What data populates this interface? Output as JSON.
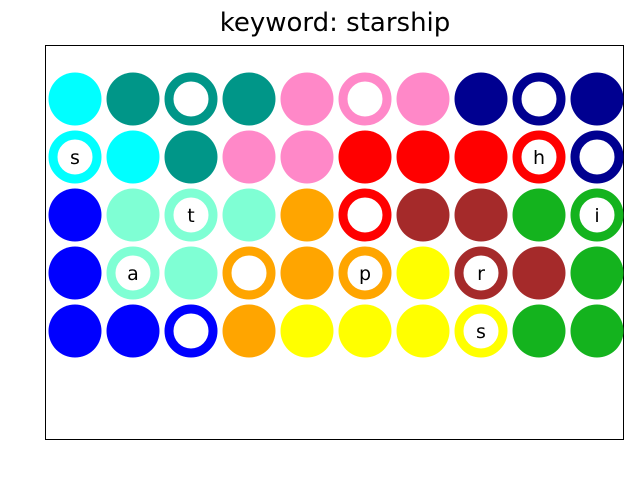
{
  "title": "keyword: starship",
  "colors": {
    "cyan": "#00ffff",
    "teal": "#009688",
    "pink": "#ff88c8",
    "navy": "#000090",
    "red": "#ff0000",
    "blue": "#0000ff",
    "aquamarine": "#7fffd4",
    "orange": "#ffa500",
    "brown": "#a52a2a",
    "green": "#14b31e",
    "yellow": "#ffff00"
  },
  "grid": [
    [
      {
        "color": "cyan",
        "style": "filled",
        "letter": ""
      },
      {
        "color": "teal",
        "style": "filled",
        "letter": ""
      },
      {
        "color": "teal",
        "style": "ring",
        "letter": ""
      },
      {
        "color": "teal",
        "style": "filled",
        "letter": ""
      },
      {
        "color": "pink",
        "style": "filled",
        "letter": ""
      },
      {
        "color": "pink",
        "style": "ring",
        "letter": ""
      },
      {
        "color": "pink",
        "style": "filled",
        "letter": ""
      },
      {
        "color": "navy",
        "style": "filled",
        "letter": ""
      },
      {
        "color": "navy",
        "style": "ring",
        "letter": ""
      },
      {
        "color": "navy",
        "style": "filled",
        "letter": ""
      }
    ],
    [
      {
        "color": "cyan",
        "style": "ring",
        "letter": "s"
      },
      {
        "color": "cyan",
        "style": "filled",
        "letter": ""
      },
      {
        "color": "teal",
        "style": "filled",
        "letter": ""
      },
      {
        "color": "pink",
        "style": "filled",
        "letter": ""
      },
      {
        "color": "pink",
        "style": "filled",
        "letter": ""
      },
      {
        "color": "red",
        "style": "filled",
        "letter": ""
      },
      {
        "color": "red",
        "style": "filled",
        "letter": ""
      },
      {
        "color": "red",
        "style": "filled",
        "letter": ""
      },
      {
        "color": "red",
        "style": "ring",
        "letter": "h"
      },
      {
        "color": "navy",
        "style": "ring",
        "letter": ""
      }
    ],
    [
      {
        "color": "blue",
        "style": "filled",
        "letter": ""
      },
      {
        "color": "aquamarine",
        "style": "filled",
        "letter": ""
      },
      {
        "color": "aquamarine",
        "style": "ring",
        "letter": "t"
      },
      {
        "color": "aquamarine",
        "style": "filled",
        "letter": ""
      },
      {
        "color": "orange",
        "style": "filled",
        "letter": ""
      },
      {
        "color": "red",
        "style": "ring",
        "letter": ""
      },
      {
        "color": "brown",
        "style": "filled",
        "letter": ""
      },
      {
        "color": "brown",
        "style": "filled",
        "letter": ""
      },
      {
        "color": "green",
        "style": "filled",
        "letter": ""
      },
      {
        "color": "green",
        "style": "ring",
        "letter": "i"
      }
    ],
    [
      {
        "color": "blue",
        "style": "filled",
        "letter": ""
      },
      {
        "color": "aquamarine",
        "style": "ring",
        "letter": "a"
      },
      {
        "color": "aquamarine",
        "style": "filled",
        "letter": ""
      },
      {
        "color": "orange",
        "style": "ring",
        "letter": ""
      },
      {
        "color": "orange",
        "style": "filled",
        "letter": ""
      },
      {
        "color": "orange",
        "style": "ring",
        "letter": "p"
      },
      {
        "color": "yellow",
        "style": "filled",
        "letter": ""
      },
      {
        "color": "brown",
        "style": "ring",
        "letter": "r"
      },
      {
        "color": "brown",
        "style": "filled",
        "letter": ""
      },
      {
        "color": "green",
        "style": "filled",
        "letter": ""
      }
    ],
    [
      {
        "color": "blue",
        "style": "filled",
        "letter": ""
      },
      {
        "color": "blue",
        "style": "filled",
        "letter": ""
      },
      {
        "color": "blue",
        "style": "ring",
        "letter": ""
      },
      {
        "color": "orange",
        "style": "filled",
        "letter": ""
      },
      {
        "color": "yellow",
        "style": "filled",
        "letter": ""
      },
      {
        "color": "yellow",
        "style": "filled",
        "letter": ""
      },
      {
        "color": "yellow",
        "style": "filled",
        "letter": ""
      },
      {
        "color": "yellow",
        "style": "ring",
        "letter": "s"
      },
      {
        "color": "green",
        "style": "filled",
        "letter": ""
      },
      {
        "color": "green",
        "style": "filled",
        "letter": ""
      }
    ]
  ]
}
